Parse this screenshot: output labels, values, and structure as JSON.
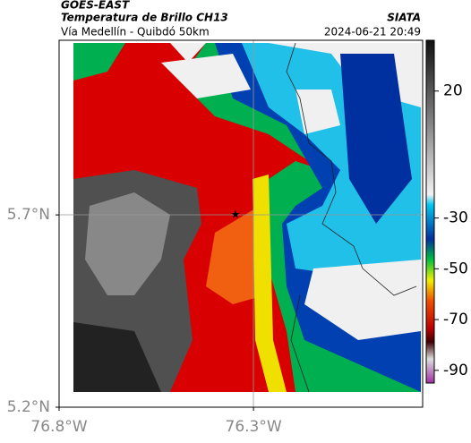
{
  "header": {
    "title": "GOES-EAST",
    "subtitle": "Temperatura de Brillo CH13",
    "source": "SIATA",
    "location": "Vía Medellín - Quibdó 50km",
    "datetime": "2024-06-21 20:49"
  },
  "map": {
    "lonlim": [
      -76.8,
      -75.865
    ],
    "latlim": [
      5.2,
      6.154
    ],
    "lonticks": [
      {
        "value": -76.8,
        "label": "76.8°W"
      },
      {
        "value": -76.3,
        "label": "76.3°W"
      }
    ],
    "latticks": [
      {
        "value": 5.7,
        "label": "5.7°N"
      },
      {
        "value": 5.2,
        "label": "5.2°N"
      }
    ]
  },
  "colorbar": {
    "lim": [
      40,
      -95
    ],
    "ticks": [
      20,
      -30,
      -50,
      -70,
      -90
    ]
  }
}
